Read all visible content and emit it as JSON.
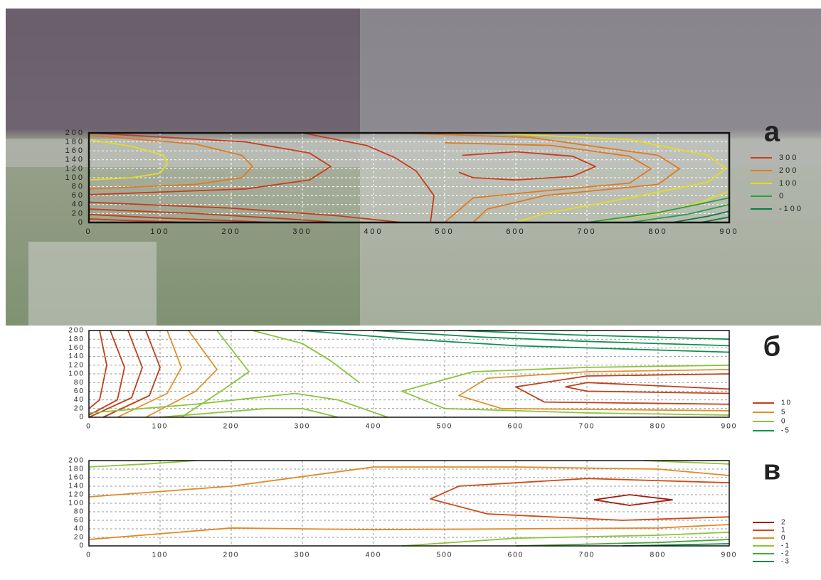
{
  "chart_data": [
    {
      "type": "contour",
      "panel": "а",
      "xlim": [
        0,
        900
      ],
      "ylim": [
        0,
        200
      ],
      "xticks": [
        0,
        100,
        200,
        300,
        400,
        500,
        600,
        700,
        800,
        900
      ],
      "yticks": [
        0,
        20,
        40,
        60,
        80,
        100,
        120,
        140,
        160,
        180,
        200
      ],
      "grid": true,
      "levels": [
        300,
        200,
        100,
        0,
        -100
      ],
      "level_colors": [
        "#c83c1a",
        "#e07a20",
        "#e6dc20",
        "#2aa048",
        "#0c7a44"
      ],
      "contours": [
        {
          "level": 100,
          "x": [
            0,
            60,
            105,
            110,
            100,
            60,
            0
          ],
          "y": [
            185,
            170,
            150,
            130,
            110,
            100,
            95
          ]
        },
        {
          "level": 200,
          "x": [
            0,
            150,
            215,
            230,
            215,
            150,
            0
          ],
          "y": [
            195,
            175,
            150,
            125,
            100,
            85,
            75
          ]
        },
        {
          "level": 300,
          "x": [
            0,
            220,
            310,
            340,
            310,
            220,
            0
          ],
          "y": [
            200,
            180,
            155,
            125,
            95,
            75,
            62
          ]
        },
        {
          "level": 300,
          "x": [
            0,
            200,
            350,
            440
          ],
          "y": [
            45,
            32,
            15,
            0
          ]
        },
        {
          "level": 300,
          "x": [
            0,
            150,
            280,
            350
          ],
          "y": [
            30,
            20,
            8,
            0
          ]
        },
        {
          "level": 300,
          "x": [
            0,
            100,
            200,
            260
          ],
          "y": [
            18,
            10,
            4,
            0
          ]
        },
        {
          "level": 300,
          "x": [
            0,
            60,
            130,
            170
          ],
          "y": [
            8,
            4,
            1,
            0
          ]
        },
        {
          "level": 300,
          "x": [
            300,
            390,
            430,
            460,
            485,
            480
          ],
          "y": [
            200,
            172,
            145,
            115,
            60,
            0
          ]
        },
        {
          "level": 300,
          "x": [
            525,
            600,
            680,
            712,
            680,
            600,
            540,
            520
          ],
          "y": [
            150,
            158,
            148,
            125,
            103,
            95,
            100,
            112
          ]
        },
        {
          "level": 200,
          "x": [
            500,
            650,
            760,
            790,
            760,
            650,
            540,
            500
          ],
          "y": [
            178,
            172,
            148,
            120,
            88,
            72,
            55,
            0
          ]
        },
        {
          "level": 200,
          "x": [
            430,
            620,
            800,
            830,
            800,
            640,
            560,
            540
          ],
          "y": [
            200,
            190,
            150,
            120,
            85,
            60,
            30,
            0
          ]
        },
        {
          "level": 100,
          "x": [
            560,
            760,
            870,
            895,
            870,
            760,
            640,
            600
          ],
          "y": [
            200,
            185,
            150,
            120,
            90,
            55,
            20,
            0
          ]
        },
        {
          "level": 100,
          "x": [
            700,
            800,
            860,
            900
          ],
          "y": [
            0,
            20,
            45,
            70
          ]
        },
        {
          "level": 0,
          "x": [
            700,
            800,
            900
          ],
          "y": [
            0,
            22,
            55
          ]
        },
        {
          "level": 0,
          "x": [
            760,
            840,
            900
          ],
          "y": [
            0,
            18,
            40
          ]
        },
        {
          "level": -100,
          "x": [
            820,
            870,
            900
          ],
          "y": [
            0,
            14,
            25
          ]
        },
        {
          "level": -100,
          "x": [
            860,
            900
          ],
          "y": [
            0,
            12
          ]
        }
      ]
    },
    {
      "type": "contour",
      "panel": "б",
      "xlim": [
        0,
        900
      ],
      "ylim": [
        0,
        200
      ],
      "xticks": [
        0,
        100,
        200,
        300,
        400,
        500,
        600,
        700,
        800,
        900
      ],
      "yticks": [
        0,
        20,
        40,
        60,
        80,
        100,
        120,
        140,
        160,
        180,
        200
      ],
      "grid": true,
      "levels": [
        10,
        5,
        0,
        -5
      ],
      "level_colors": [
        "#c0401a",
        "#e0902a",
        "#8cc43a",
        "#109050"
      ],
      "contours": [
        {
          "level": 10,
          "x": [
            15,
            25,
            15,
            0
          ],
          "y": [
            200,
            120,
            40,
            20
          ]
        },
        {
          "level": 10,
          "x": [
            30,
            50,
            40,
            0
          ],
          "y": [
            200,
            115,
            40,
            5
          ]
        },
        {
          "level": 10,
          "x": [
            55,
            75,
            60,
            0
          ],
          "y": [
            200,
            115,
            45,
            0
          ]
        },
        {
          "level": 10,
          "x": [
            80,
            100,
            85,
            20
          ],
          "y": [
            200,
            115,
            50,
            0
          ]
        },
        {
          "level": 5,
          "x": [
            110,
            130,
            110,
            40
          ],
          "y": [
            200,
            115,
            55,
            0
          ]
        },
        {
          "level": 5,
          "x": [
            140,
            180,
            150,
            80
          ],
          "y": [
            200,
            110,
            60,
            0
          ]
        },
        {
          "level": 0,
          "x": [
            180,
            225,
            190,
            130
          ],
          "y": [
            200,
            105,
            65,
            0
          ]
        },
        {
          "level": 0,
          "x": [
            230,
            300,
            340,
            380
          ],
          "y": [
            200,
            170,
            130,
            80
          ]
        },
        {
          "level": -5,
          "x": [
            300,
            450,
            600,
            900
          ],
          "y": [
            200,
            180,
            165,
            150
          ]
        },
        {
          "level": -5,
          "x": [
            400,
            550,
            700,
            900
          ],
          "y": [
            200,
            185,
            175,
            165
          ]
        },
        {
          "level": -5,
          "x": [
            520,
            680,
            900
          ],
          "y": [
            200,
            190,
            180
          ]
        },
        {
          "level": 0,
          "x": [
            900,
            700,
            540,
            440,
            500,
            700,
            900
          ],
          "y": [
            120,
            115,
            105,
            60,
            20,
            10,
            5
          ]
        },
        {
          "level": 5,
          "x": [
            900,
            700,
            560,
            520,
            580,
            900
          ],
          "y": [
            110,
            105,
            90,
            50,
            20,
            15
          ]
        },
        {
          "level": 10,
          "x": [
            900,
            700,
            600,
            640,
            900
          ],
          "y": [
            100,
            95,
            70,
            35,
            30
          ]
        },
        {
          "level": 10,
          "x": [
            900,
            700,
            670,
            700,
            900
          ],
          "y": [
            65,
            80,
            70,
            60,
            55
          ]
        },
        {
          "level": 0,
          "x": [
            0,
            150,
            290,
            350,
            420
          ],
          "y": [
            10,
            30,
            55,
            40,
            0
          ]
        },
        {
          "level": 0,
          "x": [
            100,
            250,
            300,
            350
          ],
          "y": [
            0,
            20,
            20,
            0
          ]
        }
      ]
    },
    {
      "type": "contour",
      "panel": "в",
      "xlim": [
        0,
        900
      ],
      "ylim": [
        0,
        200
      ],
      "xticks": [
        0,
        100,
        200,
        300,
        400,
        500,
        600,
        700,
        800,
        900
      ],
      "yticks": [
        0,
        20,
        40,
        60,
        80,
        100,
        120,
        140,
        160,
        180,
        200
      ],
      "grid": true,
      "levels": [
        2,
        1,
        0,
        -1,
        -2,
        -3
      ],
      "level_colors": [
        "#a02010",
        "#d04a14",
        "#e08a24",
        "#8cc43a",
        "#4aa838",
        "#108848"
      ],
      "contours": [
        {
          "level": 0,
          "x": [
            0,
            200,
            400,
            600,
            800,
            900
          ],
          "y": [
            115,
            140,
            185,
            185,
            180,
            165
          ]
        },
        {
          "level": 0,
          "x": [
            0,
            200,
            400,
            600,
            800,
            900
          ],
          "y": [
            15,
            42,
            38,
            40,
            42,
            50
          ]
        },
        {
          "level": 1,
          "x": [
            900,
            700,
            520,
            480,
            560,
            750,
            900
          ],
          "y": [
            148,
            158,
            140,
            110,
            75,
            60,
            68
          ]
        },
        {
          "level": 2,
          "x": [
            710,
            760,
            820,
            760,
            710
          ],
          "y": [
            108,
            120,
            108,
            95,
            108
          ]
        },
        {
          "level": -1,
          "x": [
            440,
            600,
            800,
            900
          ],
          "y": [
            0,
            18,
            25,
            32
          ]
        },
        {
          "level": -2,
          "x": [
            600,
            800,
            900
          ],
          "y": [
            0,
            8,
            15
          ]
        },
        {
          "level": -3,
          "x": [
            750,
            900
          ],
          "y": [
            0,
            5
          ]
        },
        {
          "level": -1,
          "x": [
            0,
            80,
            150
          ],
          "y": [
            185,
            192,
            200
          ]
        },
        {
          "level": -1,
          "x": [
            780,
            900
          ],
          "y": [
            200,
            192
          ]
        }
      ]
    }
  ]
}
